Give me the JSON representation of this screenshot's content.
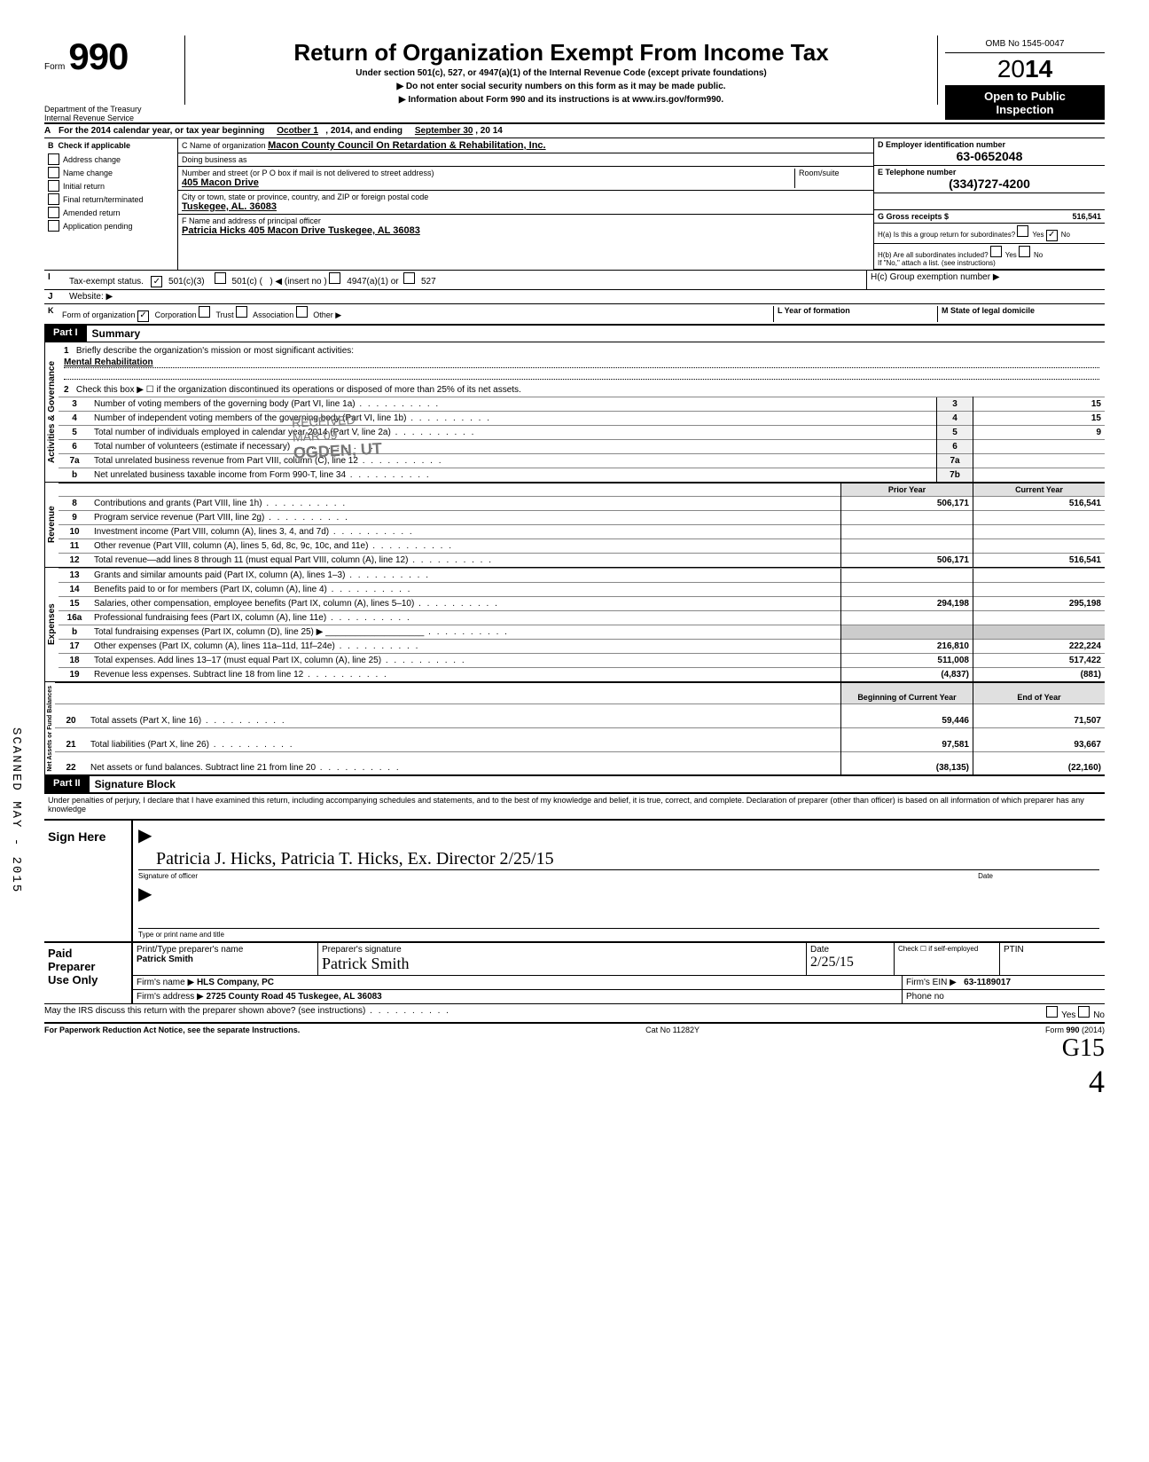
{
  "header": {
    "form_word": "Form",
    "form_number": "990",
    "title": "Return of Organization Exempt From Income Tax",
    "subtitle1": "Under section 501(c), 527, or 4947(a)(1) of the Internal Revenue Code (except private foundations)",
    "subtitle2": "▶ Do not enter social security numbers on this form as it may be made public.",
    "subtitle3": "▶ Information about Form 990 and its instructions is at www.irs.gov/form990.",
    "dept1": "Department of the Treasury",
    "dept2": "Internal Revenue Service",
    "omb": "OMB No 1545-0047",
    "year_prefix": "20",
    "year_bold": "14",
    "open1": "Open to Public",
    "open2": "Inspection"
  },
  "rowA": {
    "label": "A",
    "text1": "For the 2014 calendar year, or tax year beginning",
    "begin": "Ocotber 1",
    "mid": ", 2014, and ending",
    "end": "September 30",
    "tail": ", 20  14"
  },
  "colB": {
    "label": "B",
    "check_label": "Check if applicable",
    "items": [
      "Address change",
      "Name change",
      "Initial return",
      "Final return/terminated",
      "Amended return",
      "Application pending"
    ]
  },
  "colC": {
    "c_label": "C Name of organization",
    "org_name": "Macon County Council On Retardation & Rehabilitation, Inc.",
    "dba_label": "Doing business as",
    "street_label": "Number and street (or P O  box if mail is not delivered to street address)",
    "room_label": "Room/suite",
    "street": "405 Macon Drive",
    "city_label": "City or town, state or province, country, and ZIP or foreign postal code",
    "city": "Tuskegee, AL.  36083",
    "f_label": "F Name and address of principal officer",
    "officer": "Patricia Hicks 405 Macon Drive Tuskegee, AL  36083"
  },
  "colD": {
    "d_label": "D Employer identification number",
    "ein": "63-0652048",
    "e_label": "E Telephone number",
    "phone": "(334)727-4200",
    "g_label": "G Gross receipts $",
    "gross": "516,541",
    "h_a": "H(a) Is this a group return for subordinates?",
    "h_a_yes": "Yes",
    "h_a_no": "No",
    "h_b": "H(b) Are all subordinates included?",
    "h_note": "If \"No,\" attach a list. (see instructions)",
    "h_c": "H(c) Group exemption number ▶"
  },
  "rowI": {
    "label_i": "I",
    "tax_exempt": "Tax-exempt status.",
    "opt_501c3": "501(c)(3)",
    "opt_501c": "501(c) (",
    "insert": ") ◀ (insert no )",
    "opt_4947": "4947(a)(1) or",
    "opt_527": "527",
    "label_j": "J",
    "website": "Website: ▶"
  },
  "rowK": {
    "label": "K",
    "text": "Form of organization",
    "corp": "Corporation",
    "trust": "Trust",
    "assoc": "Association",
    "other": "Other ▶",
    "l_label": "L Year of formation",
    "m_label": "M State of legal domicile"
  },
  "part1": {
    "hdr": "Part I",
    "title": "Summary",
    "line1_num": "1",
    "line1": "Briefly describe the organization's mission or most significant activities:",
    "mission": "Mental Rehabilitation",
    "line2_num": "2",
    "line2": "Check this box ▶ ☐ if the organization discontinued its operations or disposed of more than 25% of its net assets."
  },
  "governance_rows": [
    {
      "n": "3",
      "desc": "Number of voting members of the governing body (Part VI, line 1a)",
      "box": "3",
      "val": "15"
    },
    {
      "n": "4",
      "desc": "Number of independent voting members of the governing body (Part VI, line 1b)",
      "box": "4",
      "val": "15"
    },
    {
      "n": "5",
      "desc": "Total number of individuals employed in calendar year 2014 (Part V, line 2a)",
      "box": "5",
      "val": "9"
    },
    {
      "n": "6",
      "desc": "Total number of volunteers (estimate if necessary)",
      "box": "6",
      "val": ""
    },
    {
      "n": "7a",
      "desc": "Total unrelated business revenue from Part VIII, column (C), line 12",
      "box": "7a",
      "val": ""
    },
    {
      "n": "b",
      "desc": "Net unrelated business taxable income from Form 990-T, line 34",
      "box": "7b",
      "val": ""
    }
  ],
  "col_headers": {
    "prior": "Prior Year",
    "current": "Current Year"
  },
  "revenue_rows": [
    {
      "n": "8",
      "desc": "Contributions and grants (Part VIII, line 1h)",
      "prior": "506,171",
      "curr": "516,541"
    },
    {
      "n": "9",
      "desc": "Program service revenue (Part VIII, line 2g)",
      "prior": "",
      "curr": ""
    },
    {
      "n": "10",
      "desc": "Investment income (Part VIII, column (A), lines 3, 4, and 7d)",
      "prior": "",
      "curr": ""
    },
    {
      "n": "11",
      "desc": "Other revenue (Part VIII, column (A), lines 5, 6d, 8c, 9c, 10c, and 11e)",
      "prior": "",
      "curr": ""
    },
    {
      "n": "12",
      "desc": "Total revenue—add lines 8 through 11 (must equal Part VIII, column (A), line 12)",
      "prior": "506,171",
      "curr": "516,541"
    }
  ],
  "expense_rows": [
    {
      "n": "13",
      "desc": "Grants and similar amounts paid (Part IX, column (A), lines 1–3)",
      "prior": "",
      "curr": ""
    },
    {
      "n": "14",
      "desc": "Benefits paid to or for members (Part IX, column (A), line 4)",
      "prior": "",
      "curr": ""
    },
    {
      "n": "15",
      "desc": "Salaries, other compensation, employee benefits (Part IX, column (A), lines 5–10)",
      "prior": "294,198",
      "curr": "295,198"
    },
    {
      "n": "16a",
      "desc": "Professional fundraising fees (Part IX, column (A),  line 11e)",
      "prior": "",
      "curr": ""
    },
    {
      "n": "b",
      "desc": "Total fundraising expenses (Part IX, column (D), line 25) ▶ ____________________",
      "prior": "—",
      "curr": "—"
    },
    {
      "n": "17",
      "desc": "Other expenses (Part IX, column (A), lines 11a–11d, 11f–24e)",
      "prior": "216,810",
      "curr": "222,224"
    },
    {
      "n": "18",
      "desc": "Total expenses. Add lines 13–17 (must equal Part IX, column (A), line 25)",
      "prior": "511,008",
      "curr": "517,422"
    },
    {
      "n": "19",
      "desc": "Revenue less expenses. Subtract line 18 from line 12",
      "prior": "(4,837)",
      "curr": "(881)"
    }
  ],
  "bal_headers": {
    "begin": "Beginning of Current Year",
    "end": "End of Year"
  },
  "balance_rows": [
    {
      "n": "20",
      "desc": "Total assets (Part X, line 16)",
      "prior": "59,446",
      "curr": "71,507"
    },
    {
      "n": "21",
      "desc": "Total liabilities (Part X, line 26)",
      "prior": "97,581",
      "curr": "93,667"
    },
    {
      "n": "22",
      "desc": "Net assets or fund balances. Subtract line 21 from line 20",
      "prior": "(38,135)",
      "curr": "(22,160)"
    }
  ],
  "part2": {
    "hdr": "Part II",
    "title": "Signature Block",
    "jurat": "Under penalties of perjury, I declare that I have examined this return, including accompanying schedules and statements, and to the best of my knowledge and belief, it is true, correct, and complete. Declaration of preparer (other than officer) is based on all information of which preparer has any knowledge"
  },
  "sign": {
    "here": "Sign Here",
    "sig_label": "Signature of officer",
    "signature": "Patricia J. Hicks, Patricia T. Hicks, Ex. Director 2/25/15",
    "type_label": "Type or print name and title",
    "date_label": "Date"
  },
  "preparer": {
    "left1": "Paid",
    "left2": "Preparer",
    "left3": "Use Only",
    "name_label": "Print/Type preparer's name",
    "name": "Patrick Smith",
    "sig_label": "Preparer's signature",
    "sig": "Patrick Smith",
    "date_label": "Date",
    "date": "2/25/15",
    "check_label": "Check ☐ if self-employed",
    "ptin_label": "PTIN",
    "firm_label": "Firm's name    ▶",
    "firm": "HLS Company, PC",
    "ein_label": "Firm's EIN ▶",
    "ein": "63-1189017",
    "addr_label": "Firm's address ▶",
    "addr": "2725 County Road 45 Tuskegee, AL  36083",
    "phone_label": "Phone no"
  },
  "footer": {
    "discuss": "May the IRS discuss this return with the preparer shown above? (see instructions)",
    "yes": "Yes",
    "no": "No",
    "pra": "For Paperwork Reduction Act Notice, see the separate Instructions.",
    "cat": "Cat No 11282Y",
    "form": "Form 990 (2014)",
    "hand": "G15",
    "pagenum": "4"
  },
  "stamp": {
    "line1": "RECEIVED",
    "line2": "MAR 09",
    "line3": "OGDEN, UT"
  },
  "side_text": "SCANNED MAY - 2015",
  "vtabs": {
    "gov": "Activities & Governance",
    "rev": "Revenue",
    "exp": "Expenses",
    "bal": "Net Assets or Fund Balances"
  }
}
